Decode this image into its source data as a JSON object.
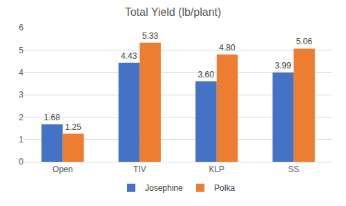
{
  "chart_data": {
    "type": "bar",
    "title": "Total Yield (lb/plant)",
    "categories": [
      "Open",
      "TIV",
      "KLP",
      "SS"
    ],
    "series": [
      {
        "name": "Josephine",
        "color": "#4472c4",
        "values": [
          1.68,
          4.43,
          3.6,
          3.99
        ],
        "value_labels": [
          "1.68",
          "4.43",
          "3.60",
          "3.99"
        ]
      },
      {
        "name": "Polka",
        "color": "#ed7d31",
        "values": [
          1.25,
          5.33,
          4.8,
          5.06
        ],
        "value_labels": [
          "1.25",
          "5.33",
          "4.80",
          "5.06"
        ]
      }
    ],
    "ylim": [
      0,
      6
    ],
    "yticks": [
      0,
      1,
      2,
      3,
      4,
      5,
      6
    ],
    "grid": true,
    "legend": "bottom",
    "data_labels": true
  }
}
